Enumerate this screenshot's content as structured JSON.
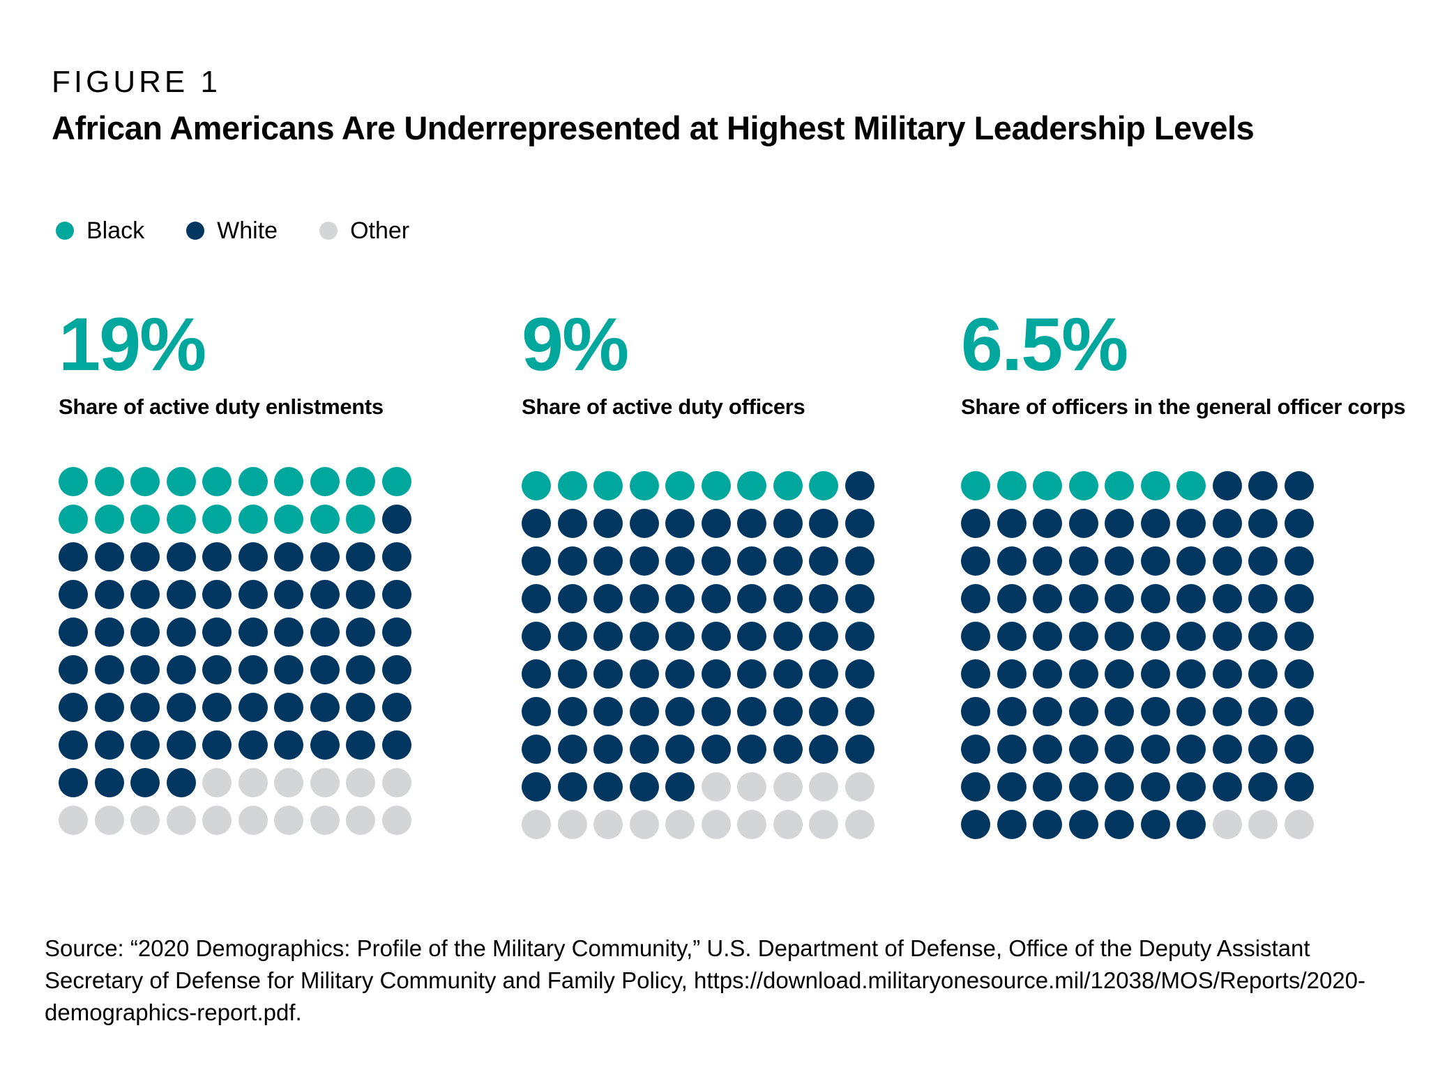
{
  "figure_label": "FIGURE 1",
  "title": "African Americans Are Underrepresented at Highest Military Leadership Levels",
  "colors": {
    "black": "#00a79d",
    "white": "#003660",
    "other": "#d4d5d7"
  },
  "legend": [
    {
      "label": "Black",
      "color": "#00a79d"
    },
    {
      "label": "White",
      "color": "#003660"
    },
    {
      "label": "Other",
      "color": "#d4d5d7"
    }
  ],
  "panels": [
    {
      "value": "19%",
      "caption": "Share of active duty enlistments"
    },
    {
      "value": "9%",
      "caption": "Share of active duty officers"
    },
    {
      "value": "6.5%",
      "caption": "Share of officers in the general officer corps"
    }
  ],
  "chart_data": {
    "type": "waffle",
    "grid": {
      "rows": 10,
      "cols": 10
    },
    "categories": [
      "Black",
      "White",
      "Other"
    ],
    "series": [
      {
        "name": "Share of active duty enlistments",
        "counts": [
          19,
          65,
          16
        ]
      },
      {
        "name": "Share of active duty officers",
        "counts": [
          9,
          76,
          15
        ]
      },
      {
        "name": "Share of officers in the general officer corps",
        "counts": [
          7,
          90,
          3
        ]
      }
    ]
  },
  "source": "Source: “2020 Demographics: Profile of the Military Community,” U.S. Department of Defense, Office of the Deputy Assistant Secretary of Defense for Military Community and Family Policy, https://download.militaryonesource.mil/12038/MOS/Reports/2020-demographics-report.pdf."
}
